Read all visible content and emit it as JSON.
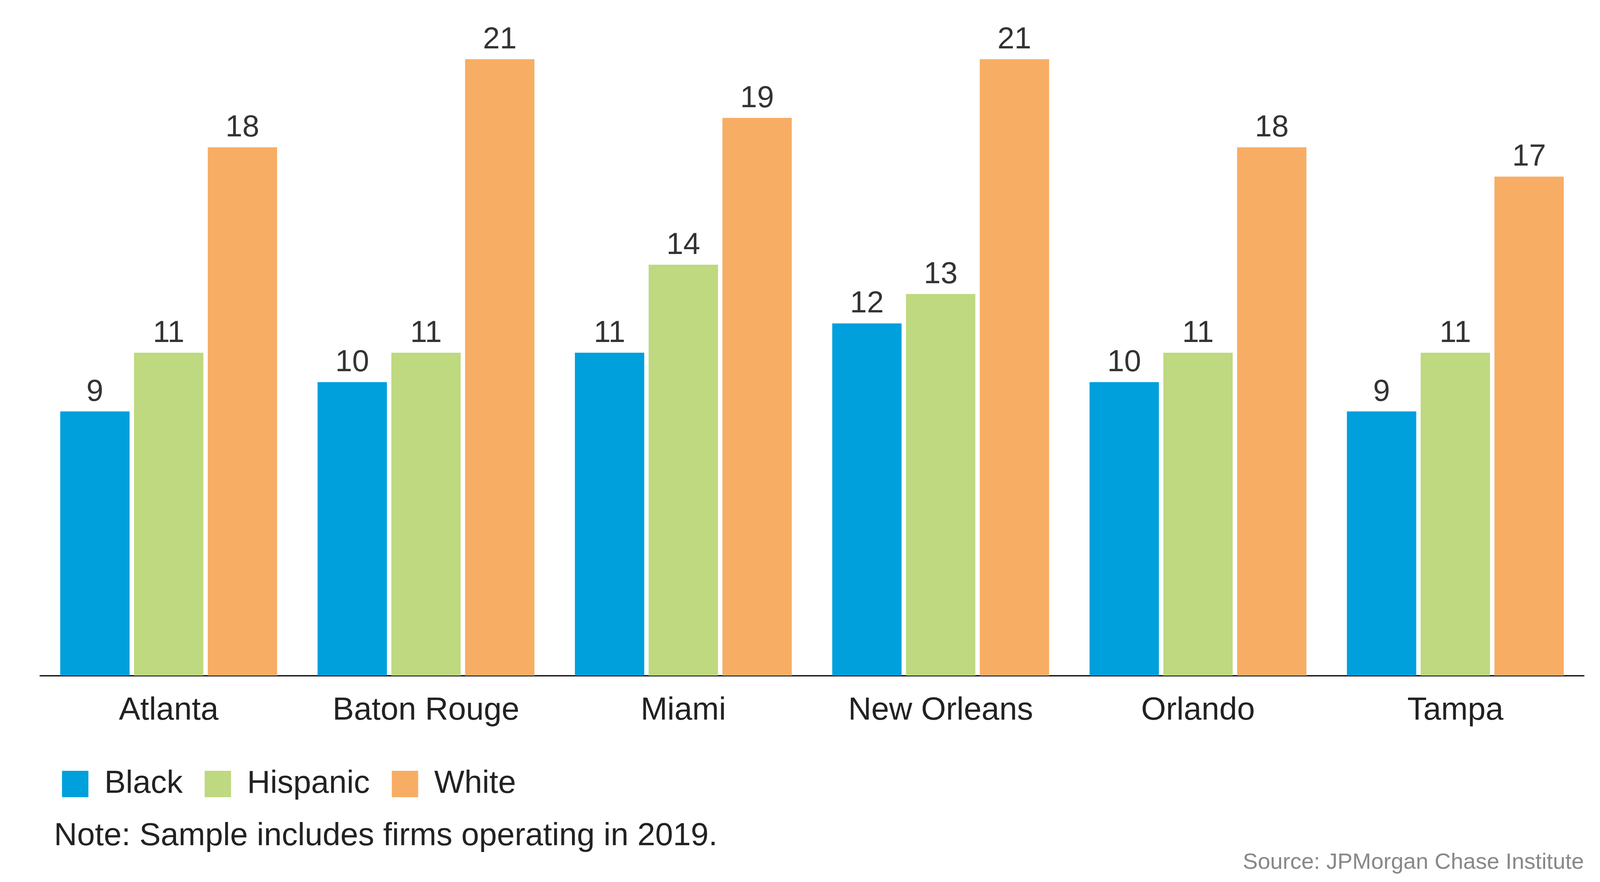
{
  "chart_data": {
    "type": "bar",
    "categories": [
      "Atlanta",
      "Baton Rouge",
      "Miami",
      "New Orleans",
      "Orlando",
      "Tampa"
    ],
    "series": [
      {
        "name": "Black",
        "color": "#00a0dc",
        "values": [
          9,
          10,
          11,
          12,
          10,
          9
        ]
      },
      {
        "name": "Hispanic",
        "color": "#bed97f",
        "values": [
          11,
          11,
          14,
          13,
          11,
          11
        ]
      },
      {
        "name": "White",
        "color": "#f7ad64",
        "values": [
          18,
          21,
          19,
          21,
          18,
          17
        ]
      }
    ],
    "ylim": [
      0,
      21
    ],
    "grid": false,
    "data_labels": true,
    "tick_labels": "x",
    "legend": "bottom-left",
    "annotations": [
      "Note: Sample includes firms operating in 2019.",
      "Source: JPMorgan Chase Institute"
    ]
  }
}
